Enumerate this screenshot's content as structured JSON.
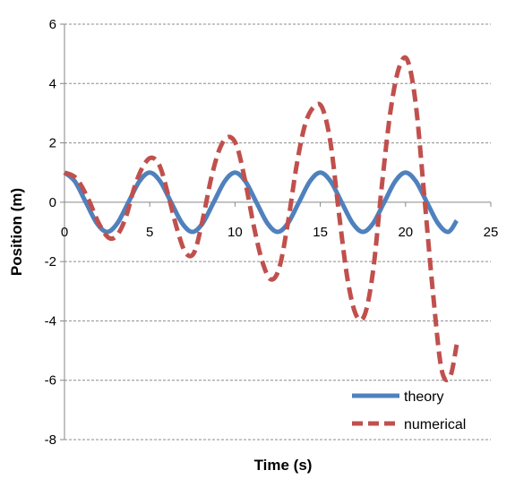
{
  "chart_data": {
    "type": "line",
    "xlabel": "Time (s)",
    "ylabel": "Position (m)",
    "xlim": [
      0,
      25
    ],
    "ylim": [
      -8,
      6
    ],
    "xticks": [
      "0",
      "5",
      "10",
      "15",
      "20",
      "25"
    ],
    "yticks": [
      "6",
      "4",
      "2",
      "0",
      "-2",
      "-4",
      "-6",
      "-8"
    ],
    "grid": "horizontal dashed",
    "legend_position": "bottom-right",
    "series": [
      {
        "name": "theory",
        "color": "#4F81BD",
        "style": "solid",
        "x": [
          0,
          0.6,
          1.25,
          1.9,
          2.5,
          3.1,
          3.75,
          4.4,
          5.0,
          5.6,
          6.25,
          6.9,
          7.5,
          8.1,
          8.75,
          9.4,
          10.0,
          10.6,
          11.25,
          11.9,
          12.5,
          13.1,
          13.75,
          14.4,
          15.0,
          15.6,
          16.25,
          16.9,
          17.5,
          18.1,
          18.75,
          19.4,
          20.0,
          20.6,
          21.25,
          21.9,
          22.5,
          23.0
        ],
        "y": [
          1.0,
          0.71,
          0.0,
          -0.71,
          -1.0,
          -0.71,
          0.0,
          0.71,
          1.0,
          0.71,
          0.0,
          -0.71,
          -1.0,
          -0.71,
          0.0,
          0.71,
          1.0,
          0.71,
          0.0,
          -0.71,
          -1.0,
          -0.71,
          0.0,
          0.71,
          1.0,
          0.71,
          0.0,
          -0.71,
          -1.0,
          -0.71,
          0.0,
          0.71,
          1.0,
          0.71,
          0.0,
          -0.71,
          -1.0,
          -0.62
        ]
      },
      {
        "name": "numerical",
        "color": "#C0504D",
        "style": "dashed",
        "x": [
          0,
          0.7,
          1.4,
          2.0,
          2.6,
          3.1,
          3.6,
          4.1,
          4.6,
          5.1,
          5.6,
          6.1,
          6.6,
          7.1,
          7.6,
          8.1,
          8.6,
          9.1,
          9.6,
          10.1,
          10.6,
          11.1,
          11.6,
          12.1,
          12.6,
          13.1,
          13.6,
          14.1,
          14.6,
          15.1,
          15.6,
          16.1,
          16.6,
          17.1,
          17.6,
          18.1,
          18.6,
          19.1,
          19.6,
          20.1,
          20.6,
          21.1,
          21.6,
          22.1,
          22.6,
          23.0
        ],
        "y": [
          1.0,
          0.8,
          0.1,
          -0.7,
          -1.2,
          -1.1,
          -0.5,
          0.5,
          1.2,
          1.5,
          1.2,
          0.2,
          -0.9,
          -1.7,
          -1.7,
          -0.6,
          0.8,
          1.8,
          2.2,
          1.9,
          0.7,
          -0.8,
          -2.0,
          -2.6,
          -2.2,
          -0.7,
          1.2,
          2.6,
          3.2,
          3.2,
          2.0,
          -0.4,
          -2.6,
          -3.8,
          -3.8,
          -2.3,
          0.5,
          3.0,
          4.5,
          4.8,
          3.3,
          0.2,
          -3.0,
          -5.6,
          -5.9,
          -4.8
        ]
      }
    ]
  }
}
